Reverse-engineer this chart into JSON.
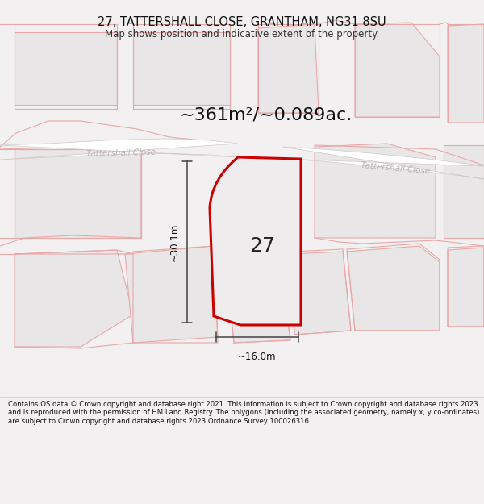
{
  "title_line1": "27, TATTERSHALL CLOSE, GRANTHAM, NG31 8SU",
  "title_line2": "Map shows position and indicative extent of the property.",
  "area_label": "~361m²/~0.089ac.",
  "number_label": "27",
  "dim_horizontal": "~16.0m",
  "dim_vertical": "~30.1m",
  "road_label_left": "Tattershall Close",
  "road_label_right": "Tattershall Close",
  "footer_text": "Contains OS data © Crown copyright and database right 2021. This information is subject to Crown copyright and database rights 2023 and is reproduced with the permission of HM Land Registry. The polygons (including the associated geometry, namely x, y co-ordinates) are subject to Crown copyright and database rights 2023 Ordnance Survey 100026316.",
  "bg_color": "#f2f0f0",
  "map_bg": "#f0eeee",
  "plot_fill": "#e8e6e6",
  "plot_stroke": "#e8a8a8",
  "highlight_stroke": "#cc0000",
  "highlight_fill": "#eeecec",
  "road_fill": "#ffffff",
  "road_stroke": "#d0c8c8",
  "footer_bg": "#ffffff",
  "road_label_color": "#b8b0b0",
  "dim_color": "#444444",
  "title_color": "#111111",
  "subtitle_color": "#333333",
  "number_color": "#222222",
  "area_color": "#111111",
  "title_fontsize": 10.5,
  "subtitle_fontsize": 8.5,
  "area_fontsize": 16,
  "number_fontsize": 18,
  "road_label_fontsize": 7.5,
  "dim_fontsize": 8.5,
  "footer_fontsize": 6.1
}
